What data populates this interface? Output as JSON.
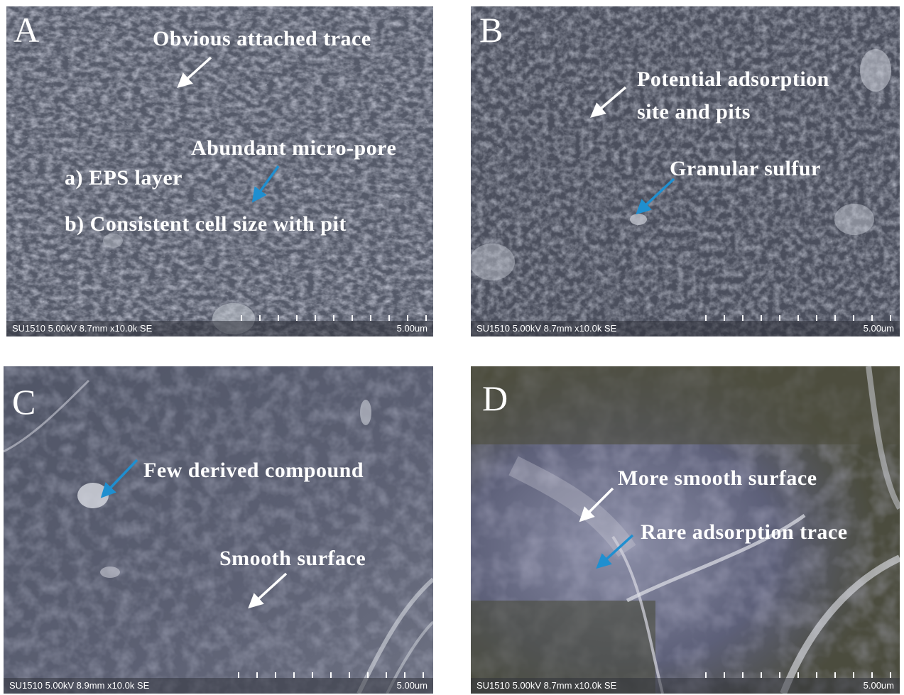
{
  "panels": [
    {
      "letter": "A",
      "sem_info": "SU1510 5.00kV 8.7mm x10.0k SE",
      "scale": "5.00um",
      "annotations": {
        "a1": "Obvious  attached trace",
        "a2": "Abundant  micro-pore",
        "a3": "a) EPS layer",
        "a4": "b)  Consistent  cell size  with  pit"
      }
    },
    {
      "letter": "B",
      "sem_info": "SU1510 5.00kV 8.7mm x10.0k SE",
      "scale": "5.00um",
      "annotations": {
        "b1": "Potential adsorption",
        "b2": "site and pits",
        "b3": "Granular  sulfur"
      }
    },
    {
      "letter": "C",
      "sem_info": "SU1510 5.00kV 8.9mm x10.0k SE",
      "scale": "5.00um",
      "annotations": {
        "c1": "Few derived  compound",
        "c2": "Smooth surface"
      }
    },
    {
      "letter": "D",
      "sem_info": "SU1510 5.00kV 8.7mm x10.0k SE",
      "scale": "5.00um",
      "annotations": {
        "d1": "More smooth surface",
        "d2": "Rare adsorption   trace"
      }
    }
  ],
  "colors": {
    "white_arrow": "#ffffff",
    "blue_arrow": "#1f8fd0",
    "panel_a_bg": "#5d6170",
    "panel_b_bg": "#4f5361",
    "panel_c_bg": "#5e6273",
    "panel_d_bg": "#5a5c6e"
  }
}
